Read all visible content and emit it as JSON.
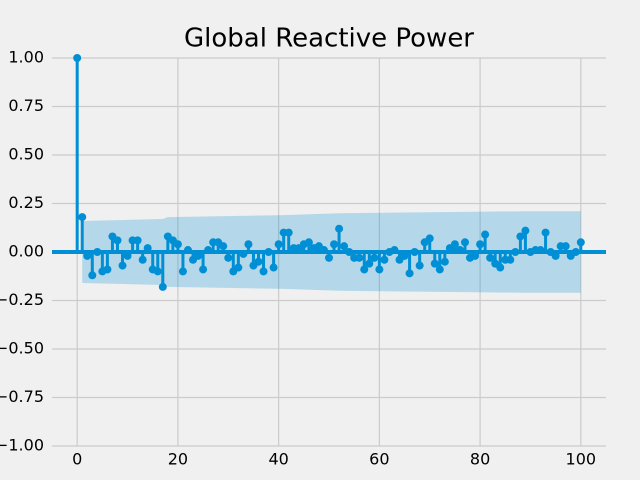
{
  "chart_data": {
    "type": "acf",
    "title": "Global Reactive Power",
    "x": [
      0,
      1,
      2,
      3,
      4,
      5,
      6,
      7,
      8,
      9,
      10,
      11,
      12,
      13,
      14,
      15,
      16,
      17,
      18,
      19,
      20,
      21,
      22,
      23,
      24,
      25,
      26,
      27,
      28,
      29,
      30,
      31,
      32,
      33,
      34,
      35,
      36,
      37,
      38,
      39,
      40,
      41,
      42,
      43,
      44,
      45,
      46,
      47,
      48,
      49,
      50,
      51,
      52,
      53,
      54,
      55,
      56,
      57,
      58,
      59,
      60,
      61,
      62,
      63,
      64,
      65,
      66,
      67,
      68,
      69,
      70,
      71,
      72,
      73,
      74,
      75,
      76,
      77,
      78,
      79,
      80,
      81,
      82,
      83,
      84,
      85,
      86,
      87,
      88,
      89,
      90,
      91,
      92,
      93,
      94,
      95,
      96,
      97,
      98,
      99,
      100
    ],
    "values": [
      1.0,
      0.18,
      -0.02,
      -0.12,
      0.0,
      -0.1,
      -0.09,
      0.08,
      0.06,
      -0.07,
      -0.02,
      0.06,
      0.06,
      -0.04,
      0.02,
      -0.09,
      -0.1,
      -0.18,
      0.08,
      0.06,
      0.04,
      -0.1,
      0.01,
      -0.04,
      -0.02,
      -0.09,
      0.01,
      0.05,
      0.05,
      0.03,
      -0.03,
      -0.1,
      -0.08,
      -0.01,
      0.04,
      -0.07,
      -0.05,
      -0.1,
      0.0,
      -0.08,
      0.04,
      0.1,
      0.1,
      0.02,
      0.02,
      0.04,
      0.05,
      0.02,
      0.03,
      0.01,
      -0.03,
      0.04,
      0.12,
      0.03,
      0.0,
      -0.03,
      -0.03,
      -0.09,
      -0.06,
      -0.03,
      -0.09,
      -0.04,
      0.0,
      0.01,
      -0.04,
      -0.02,
      -0.11,
      0.0,
      -0.07,
      0.05,
      0.07,
      -0.06,
      -0.09,
      -0.05,
      0.02,
      0.04,
      0.01,
      0.05,
      -0.03,
      -0.02,
      0.04,
      0.09,
      -0.03,
      -0.06,
      -0.08,
      -0.04,
      -0.04,
      0.0,
      0.08,
      0.11,
      0.0,
      0.01,
      0.01,
      0.1,
      0.0,
      -0.02,
      0.03,
      0.03,
      -0.02,
      0.0,
      0.05
    ],
    "color": "#008fd5",
    "band": {
      "x": [
        1,
        17,
        18,
        41,
        52,
        89,
        100
      ],
      "upper": [
        0.16,
        0.17,
        0.18,
        0.19,
        0.2,
        0.21,
        0.21
      ],
      "lower": [
        -0.16,
        -0.17,
        -0.18,
        -0.19,
        -0.2,
        -0.21,
        -0.21
      ],
      "color": "#008fd5"
    },
    "xlim": [
      -5,
      105
    ],
    "ylim": [
      -1,
      1
    ],
    "xticks": [
      0,
      20,
      40,
      60,
      80,
      100
    ],
    "yticks": [
      {
        "value": -1,
        "label": "−1.00"
      },
      {
        "value": -0.75,
        "label": "−0.75"
      },
      {
        "value": -0.5,
        "label": "−0.50"
      },
      {
        "value": -0.25,
        "label": "−0.25"
      },
      {
        "value": 0,
        "label": "0.00"
      },
      {
        "value": 0.25,
        "label": "0.25"
      },
      {
        "value": 0.5,
        "label": "0.50"
      },
      {
        "value": 0.75,
        "label": "0.75"
      },
      {
        "value": 1,
        "label": "1.00"
      }
    ],
    "grid": true
  }
}
